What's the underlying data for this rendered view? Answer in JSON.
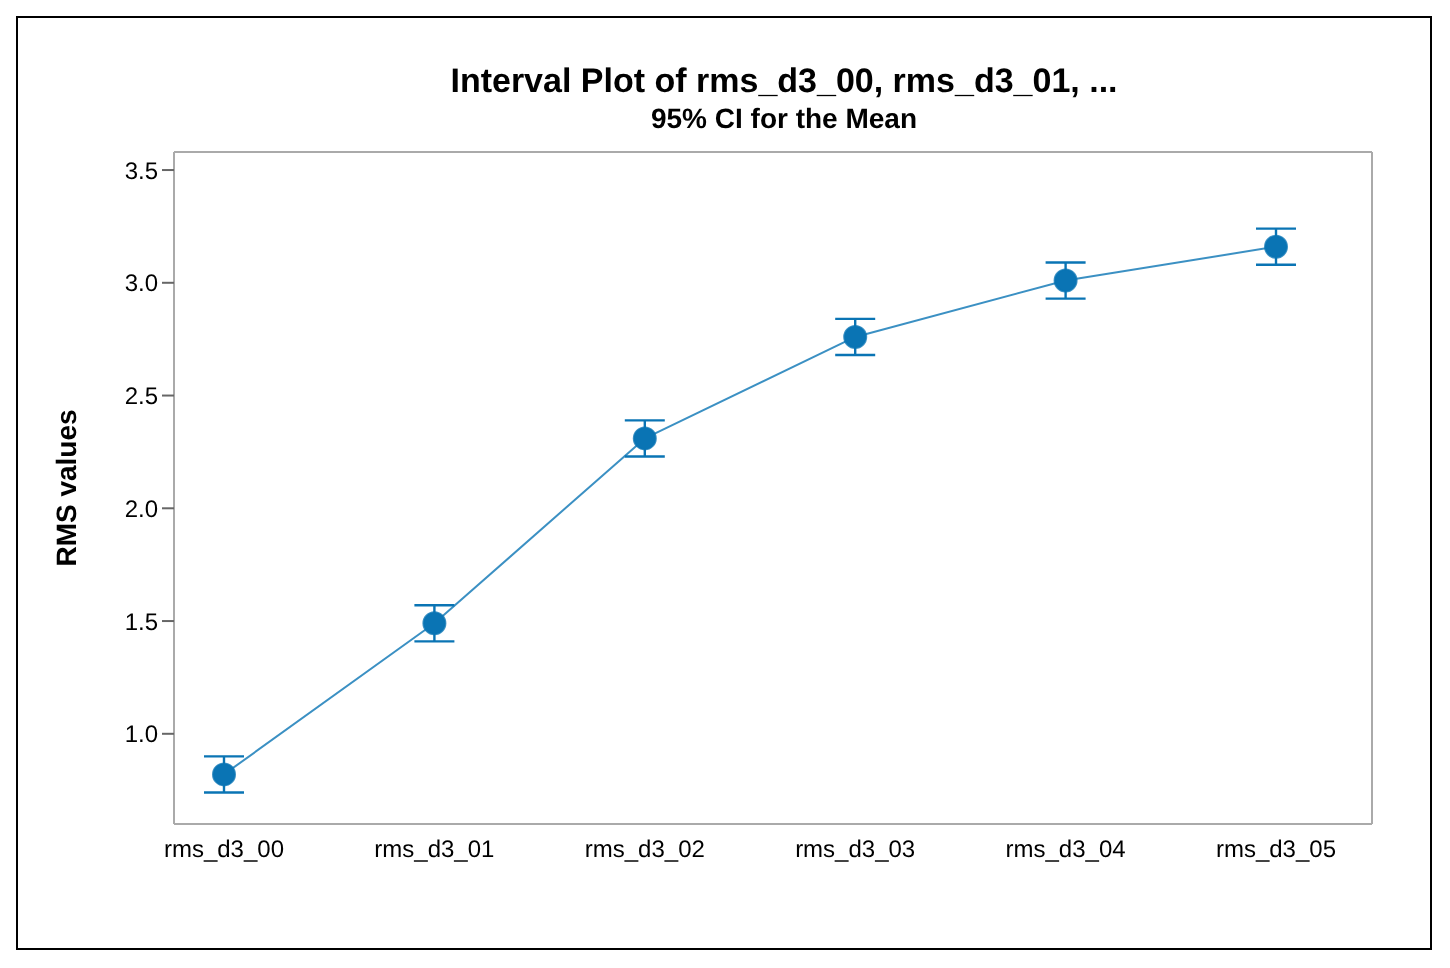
{
  "chart_data": {
    "type": "line",
    "title": "Interval Plot of rms_d3_00, rms_d3_01, ...",
    "subtitle": "95% CI for the Mean",
    "ylabel": "RMS values",
    "categories": [
      "rms_d3_00",
      "rms_d3_01",
      "rms_d3_02",
      "rms_d3_03",
      "rms_d3_04",
      "rms_d3_05"
    ],
    "series": [
      {
        "color": "#0a74b4",
        "values": [
          0.82,
          1.49,
          2.31,
          2.76,
          3.01,
          3.16
        ],
        "errors": [
          0.08,
          0.08,
          0.08,
          0.08,
          0.08,
          0.08
        ]
      }
    ],
    "ylim": [
      0.6,
      3.58
    ],
    "yticks": [
      {
        "value": 1,
        "label": "1.0"
      },
      1.5,
      {
        "value": 2,
        "label": "2.0"
      },
      2.5,
      {
        "value": 3,
        "label": "3.0"
      },
      3.5
    ],
    "marker": "circle",
    "line_style": "solid"
  }
}
